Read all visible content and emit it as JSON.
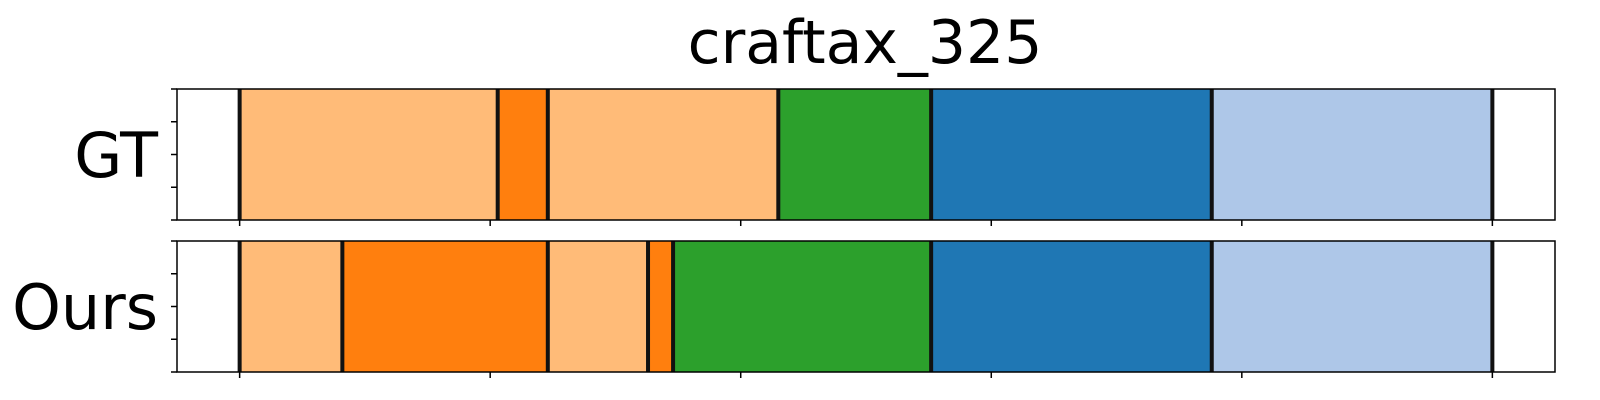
{
  "chart_data": {
    "type": "bar",
    "title": "craftax_325",
    "xlim": [
      -25,
      525
    ],
    "x_ticks": [
      0,
      100,
      200,
      300,
      400,
      500
    ],
    "y_ticks_per_row": 5,
    "tick_labels_visible": false,
    "grid": false,
    "legend": "none",
    "series": [
      {
        "name": "GT",
        "segments": [
          {
            "start": 0,
            "end": 103,
            "color": "#ffbb78"
          },
          {
            "start": 103,
            "end": 123,
            "color": "#ff7f0e"
          },
          {
            "start": 123,
            "end": 215,
            "color": "#ffbb78"
          },
          {
            "start": 215,
            "end": 276,
            "color": "#2ca02c"
          },
          {
            "start": 276,
            "end": 388,
            "color": "#1f77b4"
          },
          {
            "start": 388,
            "end": 500,
            "color": "#aec7e8"
          }
        ]
      },
      {
        "name": "Ours",
        "segments": [
          {
            "start": 0,
            "end": 41,
            "color": "#ffbb78"
          },
          {
            "start": 41,
            "end": 123,
            "color": "#ff7f0e"
          },
          {
            "start": 123,
            "end": 163,
            "color": "#ffbb78"
          },
          {
            "start": 163,
            "end": 173,
            "color": "#ff7f0e"
          },
          {
            "start": 173,
            "end": 276,
            "color": "#2ca02c"
          },
          {
            "start": 276,
            "end": 388,
            "color": "#1f77b4"
          },
          {
            "start": 388,
            "end": 500,
            "color": "#aec7e8"
          }
        ]
      }
    ]
  }
}
